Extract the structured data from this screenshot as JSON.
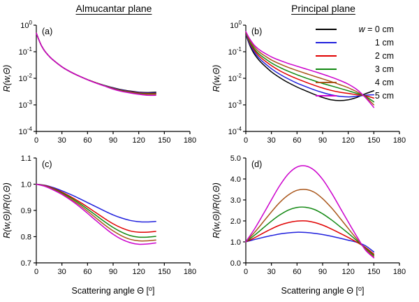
{
  "figure": {
    "column_titles": [
      "Almucantar plane",
      "Principal plane"
    ]
  },
  "chart_data": [
    {
      "id": "a",
      "panel_label": "(a)",
      "type": "line",
      "yscale": "log",
      "xlim": [
        0,
        180
      ],
      "x_ticks": [
        0,
        30,
        60,
        90,
        120,
        150,
        180
      ],
      "ylim_exp": [
        -4,
        0
      ],
      "y_ticks_exp": [
        0,
        -1,
        -2,
        -3,
        -4
      ],
      "ylabel": "R(w,Θ)",
      "xlabel": "",
      "x": [
        0,
        3,
        6,
        10,
        15,
        20,
        30,
        40,
        50,
        60,
        70,
        80,
        90,
        100,
        110,
        120,
        130,
        140
      ],
      "series": [
        {
          "name": "w = 0 cm",
          "color": "#000000",
          "y": [
            0.5,
            0.28,
            0.17,
            0.105,
            0.068,
            0.048,
            0.027,
            0.0175,
            0.0122,
            0.0089,
            0.0068,
            0.0054,
            0.0044,
            0.0037,
            0.0033,
            0.003,
            0.0029,
            0.003
          ]
        },
        {
          "name": "1 cm",
          "color": "#2020dd",
          "y": [
            0.5,
            0.28,
            0.17,
            0.105,
            0.068,
            0.048,
            0.027,
            0.0175,
            0.0122,
            0.0089,
            0.0068,
            0.0054,
            0.0043,
            0.0036,
            0.0032,
            0.0029,
            0.0028,
            0.0028
          ]
        },
        {
          "name": "2 cm",
          "color": "#e00000",
          "y": [
            0.5,
            0.28,
            0.17,
            0.105,
            0.068,
            0.048,
            0.027,
            0.0175,
            0.0122,
            0.0089,
            0.0068,
            0.0053,
            0.0042,
            0.0035,
            0.0031,
            0.0028,
            0.0027,
            0.0027
          ]
        },
        {
          "name": "3 cm",
          "color": "#118811",
          "y": [
            0.5,
            0.28,
            0.17,
            0.105,
            0.068,
            0.048,
            0.027,
            0.0175,
            0.0122,
            0.0089,
            0.0067,
            0.0053,
            0.0041,
            0.0034,
            0.003,
            0.0027,
            0.0026,
            0.0026
          ]
        },
        {
          "name": "4 cm",
          "color": "#a9561a",
          "y": [
            0.5,
            0.28,
            0.17,
            0.105,
            0.068,
            0.048,
            0.027,
            0.0175,
            0.0122,
            0.0088,
            0.0067,
            0.0052,
            0.004,
            0.0033,
            0.0029,
            0.0026,
            0.0025,
            0.0025
          ]
        },
        {
          "name": "5 cm",
          "color": "#cc00cc",
          "y": [
            0.5,
            0.28,
            0.17,
            0.105,
            0.068,
            0.048,
            0.027,
            0.0175,
            0.0122,
            0.0088,
            0.0066,
            0.0051,
            0.0039,
            0.0032,
            0.0028,
            0.0025,
            0.0023,
            0.0023
          ]
        }
      ]
    },
    {
      "id": "b",
      "panel_label": "(b)",
      "type": "line",
      "yscale": "log",
      "xlim": [
        0,
        180
      ],
      "x_ticks": [
        0,
        30,
        60,
        90,
        120,
        150,
        180
      ],
      "ylim_exp": [
        -4,
        0
      ],
      "y_ticks_exp": [
        0,
        -1,
        -2,
        -3,
        -4
      ],
      "ylabel": "R(w,Θ)",
      "xlabel": "",
      "x": [
        0,
        3,
        6,
        10,
        15,
        20,
        30,
        40,
        50,
        60,
        70,
        80,
        90,
        100,
        110,
        120,
        130,
        140,
        150
      ],
      "legend": {
        "entries": [
          {
            "label": "w = 0 cm",
            "color": "#000000"
          },
          {
            "label": "1 cm",
            "color": "#2020dd"
          },
          {
            "label": "2 cm",
            "color": "#e00000"
          },
          {
            "label": "3 cm",
            "color": "#118811"
          },
          {
            "label": "4 cm",
            "color": "#a9561a"
          },
          {
            "label": "5 cm",
            "color": "#cc00cc"
          }
        ]
      },
      "series": [
        {
          "name": "w = 0 cm",
          "color": "#000000",
          "y": [
            0.45,
            0.24,
            0.14,
            0.082,
            0.05,
            0.034,
            0.0175,
            0.0105,
            0.0068,
            0.0047,
            0.0034,
            0.0025,
            0.0019,
            0.00155,
            0.00145,
            0.00155,
            0.0019,
            0.0026,
            0.0034
          ]
        },
        {
          "name": "1 cm",
          "color": "#2020dd",
          "y": [
            0.47,
            0.26,
            0.16,
            0.096,
            0.06,
            0.042,
            0.023,
            0.014,
            0.0094,
            0.0066,
            0.0049,
            0.0037,
            0.0029,
            0.0024,
            0.0021,
            0.002,
            0.0021,
            0.0023,
            0.0024
          ]
        },
        {
          "name": "2 cm",
          "color": "#e00000",
          "y": [
            0.5,
            0.29,
            0.18,
            0.112,
            0.072,
            0.052,
            0.03,
            0.019,
            0.0132,
            0.0096,
            0.0072,
            0.0055,
            0.0043,
            0.0035,
            0.003,
            0.0027,
            0.0024,
            0.0022,
            0.0018
          ]
        },
        {
          "name": "3 cm",
          "color": "#118811",
          "y": [
            0.52,
            0.31,
            0.2,
            0.128,
            0.085,
            0.063,
            0.038,
            0.0255,
            0.0182,
            0.0136,
            0.0104,
            0.0081,
            0.0064,
            0.0052,
            0.0042,
            0.0034,
            0.0027,
            0.0021,
            0.0013
          ]
        },
        {
          "name": "4 cm",
          "color": "#a9561a",
          "y": [
            0.55,
            0.34,
            0.23,
            0.15,
            0.103,
            0.078,
            0.049,
            0.0345,
            0.0255,
            0.0196,
            0.0153,
            0.012,
            0.0095,
            0.0075,
            0.0058,
            0.0044,
            0.0031,
            0.002,
            0.001
          ]
        },
        {
          "name": "5 cm",
          "color": "#cc00cc",
          "y": [
            0.58,
            0.37,
            0.26,
            0.175,
            0.125,
            0.097,
            0.064,
            0.047,
            0.036,
            0.0285,
            0.0227,
            0.0181,
            0.0143,
            0.0111,
            0.0084,
            0.006,
            0.0038,
            0.0019,
            0.0008
          ]
        }
      ]
    },
    {
      "id": "c",
      "panel_label": "(c)",
      "type": "line",
      "yscale": "linear",
      "xlim": [
        0,
        180
      ],
      "x_ticks": [
        0,
        30,
        60,
        90,
        120,
        150,
        180
      ],
      "ylim": [
        0.7,
        1.1
      ],
      "y_ticks": [
        1.1,
        1.0,
        0.9,
        0.8,
        0.7
      ],
      "ylabel": "R(w,Θ)/R(0,Θ)",
      "xlabel": "Scattering angle Θ [°]",
      "x": [
        0,
        10,
        20,
        30,
        40,
        50,
        60,
        70,
        80,
        90,
        100,
        110,
        120,
        130,
        140
      ],
      "series": [
        {
          "name": "1 cm",
          "color": "#2020dd",
          "y": [
            1.0,
            0.996,
            0.987,
            0.975,
            0.961,
            0.946,
            0.93,
            0.914,
            0.898,
            0.883,
            0.871,
            0.862,
            0.857,
            0.856,
            0.858
          ]
        },
        {
          "name": "2 cm",
          "color": "#e00000",
          "y": [
            1.0,
            0.995,
            0.984,
            0.97,
            0.953,
            0.934,
            0.913,
            0.891,
            0.869,
            0.849,
            0.833,
            0.822,
            0.817,
            0.817,
            0.82
          ]
        },
        {
          "name": "3 cm",
          "color": "#118811",
          "y": [
            1.0,
            0.994,
            0.982,
            0.967,
            0.949,
            0.928,
            0.905,
            0.881,
            0.857,
            0.835,
            0.817,
            0.804,
            0.798,
            0.798,
            0.801
          ]
        },
        {
          "name": "4 cm",
          "color": "#a9561a",
          "y": [
            1.0,
            0.993,
            0.98,
            0.964,
            0.944,
            0.922,
            0.897,
            0.871,
            0.845,
            0.822,
            0.803,
            0.79,
            0.784,
            0.784,
            0.787
          ]
        },
        {
          "name": "5 cm",
          "color": "#cc00cc",
          "y": [
            1.0,
            0.992,
            0.978,
            0.961,
            0.94,
            0.916,
            0.889,
            0.861,
            0.834,
            0.809,
            0.79,
            0.777,
            0.771,
            0.772,
            0.776
          ]
        }
      ]
    },
    {
      "id": "d",
      "panel_label": "(d)",
      "type": "line",
      "yscale": "linear",
      "xlim": [
        0,
        180
      ],
      "x_ticks": [
        0,
        30,
        60,
        90,
        120,
        150,
        180
      ],
      "ylim": [
        0,
        5
      ],
      "y_ticks": [
        5.0,
        4.0,
        3.0,
        2.0,
        1.0,
        0.0
      ],
      "ylabel": "R(w,Θ)/R(0,Θ)",
      "xlabel": "Scattering angle Θ [°]",
      "x": [
        0,
        10,
        20,
        30,
        40,
        50,
        60,
        70,
        80,
        90,
        100,
        110,
        120,
        130,
        140,
        150
      ],
      "series": [
        {
          "name": "1 cm",
          "color": "#2020dd",
          "y": [
            1.0,
            1.11,
            1.21,
            1.3,
            1.38,
            1.43,
            1.46,
            1.45,
            1.41,
            1.35,
            1.27,
            1.18,
            1.08,
            0.98,
            0.82,
            0.52
          ]
        },
        {
          "name": "2 cm",
          "color": "#e00000",
          "y": [
            1.0,
            1.19,
            1.41,
            1.62,
            1.8,
            1.92,
            1.99,
            2.0,
            1.93,
            1.8,
            1.62,
            1.42,
            1.21,
            0.99,
            0.74,
            0.42
          ]
        },
        {
          "name": "3 cm",
          "color": "#118811",
          "y": [
            1.0,
            1.31,
            1.65,
            1.99,
            2.29,
            2.52,
            2.64,
            2.65,
            2.55,
            2.34,
            2.06,
            1.74,
            1.41,
            1.06,
            0.7,
            0.36
          ]
        },
        {
          "name": "4 cm",
          "color": "#a9561a",
          "y": [
            1.0,
            1.44,
            1.93,
            2.43,
            2.89,
            3.24,
            3.46,
            3.5,
            3.37,
            3.06,
            2.64,
            2.15,
            1.64,
            1.14,
            0.66,
            0.3
          ]
        },
        {
          "name": "5 cm",
          "color": "#cc00cc",
          "y": [
            1.0,
            1.6,
            2.29,
            3.01,
            3.7,
            4.25,
            4.57,
            4.62,
            4.42,
            3.98,
            3.36,
            2.66,
            1.95,
            1.26,
            0.62,
            0.24
          ]
        }
      ]
    }
  ]
}
